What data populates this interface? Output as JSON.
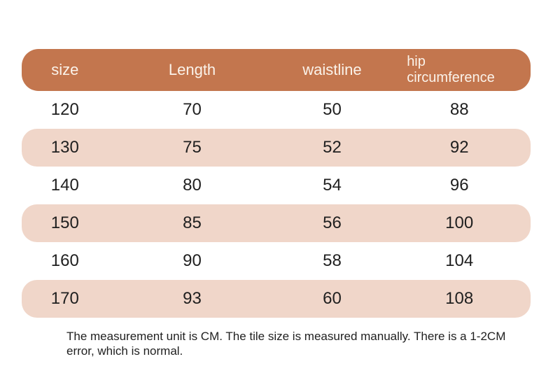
{
  "chart_data": {
    "type": "table",
    "columns": [
      "size",
      "Length",
      "waistline",
      "hip circumference"
    ],
    "rows": [
      [
        "120",
        "70",
        "50",
        "88"
      ],
      [
        "130",
        "75",
        "52",
        "92"
      ],
      [
        "140",
        "80",
        "54",
        "96"
      ],
      [
        "150",
        "85",
        "56",
        "100"
      ],
      [
        "160",
        "90",
        "58",
        "104"
      ],
      [
        "170",
        "93",
        "60",
        "108"
      ]
    ],
    "layout_hints": {
      "alternating_row_shading": true,
      "shaded_rows": [
        1,
        3,
        5
      ],
      "header_style": "rounded pill, terracotta background, light text"
    }
  },
  "footer": {
    "note": "The measurement unit is CM. The tile size is measured manually. There is a 1-2CM error, which is normal."
  },
  "colors": {
    "header_bg": "#C3764E",
    "header_text": "#FBF3EA",
    "row_alt_bg": "#F0D6C9",
    "text": "#1F1F1F",
    "page_bg": "#FFFFFF"
  }
}
